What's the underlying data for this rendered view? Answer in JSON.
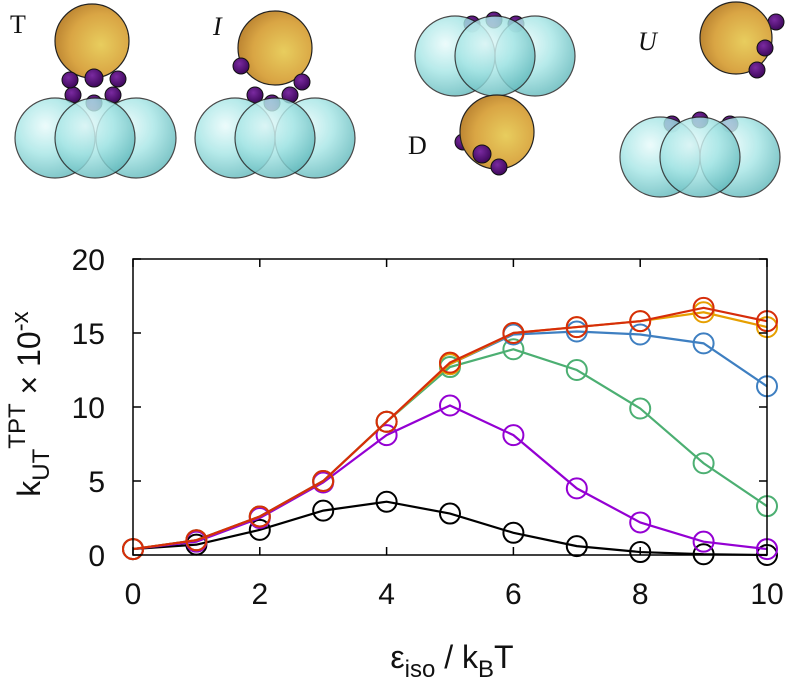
{
  "panel_labels": {
    "T": "T",
    "I": "I",
    "D": "D",
    "U": "U"
  },
  "colors": {
    "sphere_large": "#8fdede",
    "sphere_gold": "#d4a33f",
    "patch": "#4b0a6e"
  },
  "chart_data": {
    "type": "line",
    "title": "",
    "xlabel": {
      "main": "ε",
      "sub": "iso",
      "mid": " / k",
      "sub2": "B",
      "end": "T"
    },
    "ylabel": {
      "main": "k",
      "sub": "UT",
      "sup": "TPT",
      "suffix": " × 10",
      "suffix_sup": "-x"
    },
    "xlim": [
      0,
      10
    ],
    "ylim": [
      0,
      20
    ],
    "xticks": [
      0,
      2,
      4,
      6,
      8,
      10
    ],
    "yticks": [
      0,
      5,
      10,
      15,
      20
    ],
    "grid": false,
    "marker": "open-circle",
    "x": [
      0,
      1,
      2,
      3,
      4,
      5,
      6,
      7,
      8,
      9,
      10
    ],
    "series": [
      {
        "color": "#000000",
        "values": [
          0.4,
          0.7,
          1.7,
          3.0,
          3.6,
          2.8,
          1.5,
          0.6,
          0.2,
          0.05,
          0.0
        ]
      },
      {
        "color": "#9400d3",
        "values": [
          0.4,
          0.9,
          2.5,
          4.9,
          8.1,
          10.1,
          8.1,
          4.5,
          2.2,
          0.9,
          0.4
        ]
      },
      {
        "color": "#4caf72",
        "values": [
          0.4,
          1.0,
          2.6,
          5.0,
          9.0,
          12.7,
          13.9,
          12.5,
          9.9,
          6.2,
          3.3
        ]
      },
      {
        "color": "#3e7fc1",
        "values": [
          0.4,
          1.0,
          2.6,
          5.0,
          9.0,
          12.9,
          14.9,
          15.1,
          14.9,
          14.3,
          11.4
        ]
      },
      {
        "color": "#e69f00",
        "values": [
          0.4,
          1.0,
          2.6,
          5.0,
          9.0,
          12.9,
          15.0,
          15.4,
          15.8,
          16.4,
          15.4
        ]
      },
      {
        "color": "#d62d0a",
        "values": [
          0.4,
          1.0,
          2.6,
          5.0,
          9.0,
          13.0,
          15.0,
          15.4,
          15.8,
          16.7,
          15.8
        ]
      }
    ]
  }
}
